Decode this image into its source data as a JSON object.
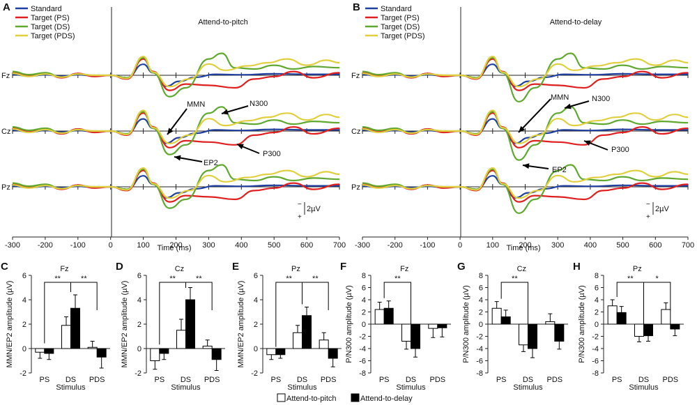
{
  "colors": {
    "Standard": "#2040a0",
    "Target (PS)": "#e02020",
    "Target (DS)": "#60a830",
    "Target (PDS)": "#e0d040"
  },
  "waveform_panels": [
    {
      "letter": "A",
      "title": "Attend-to-pitch",
      "legend": [
        "Standard",
        "Target (PS)",
        "Target (DS)",
        "Target (PDS)"
      ],
      "channels": [
        "Fz",
        "Cz",
        "Pz"
      ],
      "xlabel": "Time (ms)",
      "xticks": [
        -300,
        -200,
        -100,
        0,
        100,
        200,
        300,
        400,
        500,
        600,
        700
      ],
      "scale_label": "2µV",
      "scale_minus": "−",
      "scale_plus": "+",
      "annotations": [
        "MMN",
        "N300",
        "EP2",
        "P300"
      ]
    },
    {
      "letter": "B",
      "title": "Attend-to-delay",
      "legend": [
        "Standard",
        "Target (PS)",
        "Target (DS)",
        "Target (PDS)"
      ],
      "channels": [
        "Fz",
        "Cz",
        "Pz"
      ],
      "xlabel": "Time (ms)",
      "xticks": [
        -300,
        -200,
        -100,
        0,
        100,
        200,
        300,
        400,
        500,
        600,
        700
      ],
      "scale_label": "2µV",
      "scale_minus": "−",
      "scale_plus": "+",
      "annotations": [
        "MMN",
        "N300",
        "P300",
        "EP2"
      ]
    }
  ],
  "chart_data": [
    {
      "type": "bar",
      "letter": "C",
      "title": "Fz",
      "ylabel": "MMN/EP2 amplitude (µV)",
      "xlabel": "Stimulus",
      "categories": [
        "PS",
        "DS",
        "PDS"
      ],
      "ylim": [
        -2,
        6
      ],
      "yticks": [
        -2,
        0,
        2,
        4,
        6
      ],
      "series": [
        {
          "name": "Attend-to-pitch",
          "values": [
            -0.3,
            1.9,
            0.1
          ],
          "errors": [
            0.5,
            0.7,
            0.5
          ]
        },
        {
          "name": "Attend-to-delay",
          "values": [
            -0.4,
            3.3,
            -0.7
          ],
          "errors": [
            0.5,
            1.1,
            0.9
          ]
        }
      ],
      "significance": [
        {
          "from": "PS",
          "to": "DS",
          "label": "**"
        },
        {
          "from": "DS",
          "to": "PDS",
          "label": "**"
        }
      ]
    },
    {
      "type": "bar",
      "letter": "D",
      "title": "Cz",
      "ylabel": "MMN/EP2 amplitude (µV)",
      "xlabel": "Stimulus",
      "categories": [
        "PS",
        "DS",
        "PDS"
      ],
      "ylim": [
        -2,
        6
      ],
      "yticks": [
        -2,
        0,
        2,
        4,
        6
      ],
      "series": [
        {
          "name": "Attend-to-pitch",
          "values": [
            -1.0,
            1.5,
            0.2
          ],
          "errors": [
            0.7,
            0.9,
            0.5
          ]
        },
        {
          "name": "Attend-to-delay",
          "values": [
            -0.4,
            4.0,
            -0.9
          ],
          "errors": [
            0.5,
            1.0,
            0.9
          ]
        }
      ],
      "significance": [
        {
          "from": "PS",
          "to": "DS",
          "label": "**"
        },
        {
          "from": "DS",
          "to": "PDS",
          "label": "**"
        }
      ]
    },
    {
      "type": "bar",
      "letter": "E",
      "title": "Pz",
      "ylabel": "MMN/EP2 amplitude (µV)",
      "xlabel": "Stimulus",
      "categories": [
        "PS",
        "DS",
        "PDS"
      ],
      "ylim": [
        -2,
        6
      ],
      "yticks": [
        -2,
        0,
        2,
        4,
        6
      ],
      "series": [
        {
          "name": "Attend-to-pitch",
          "values": [
            -0.5,
            1.3,
            0.7
          ],
          "errors": [
            0.4,
            0.6,
            0.6
          ]
        },
        {
          "name": "Attend-to-delay",
          "values": [
            -0.5,
            2.7,
            -0.8
          ],
          "errors": [
            0.3,
            0.7,
            0.7
          ]
        }
      ],
      "significance": [
        {
          "from": "PS",
          "to": "DS",
          "label": "**"
        },
        {
          "from": "DS",
          "to": "PDS",
          "label": "**"
        }
      ]
    },
    {
      "type": "bar",
      "letter": "F",
      "title": "Fz",
      "ylabel": "P/N300 amplitude (µV)",
      "xlabel": "Stimulus",
      "categories": [
        "PS",
        "DS",
        "PDS"
      ],
      "ylim": [
        -8,
        8
      ],
      "yticks": [
        -8,
        -6,
        -4,
        -2,
        0,
        2,
        4,
        6,
        8
      ],
      "series": [
        {
          "name": "Attend-to-pitch",
          "values": [
            2.4,
            -2.8,
            -0.7
          ],
          "errors": [
            1.2,
            1.3,
            1.5
          ]
        },
        {
          "name": "Attend-to-delay",
          "values": [
            2.6,
            -4.0,
            -0.6
          ],
          "errors": [
            1.2,
            1.4,
            1.5
          ]
        }
      ],
      "significance": [
        {
          "from": "PS",
          "to": "DS",
          "label": "**"
        }
      ]
    },
    {
      "type": "bar",
      "letter": "G",
      "title": "Cz",
      "ylabel": "P/N300 amplitude (µV)",
      "xlabel": "Stimulus",
      "categories": [
        "PS",
        "DS",
        "PDS"
      ],
      "ylim": [
        -8,
        8
      ],
      "yticks": [
        -8,
        -6,
        -4,
        -2,
        0,
        2,
        4,
        6,
        8
      ],
      "series": [
        {
          "name": "Attend-to-pitch",
          "values": [
            2.6,
            -3.4,
            0.4
          ],
          "errors": [
            1.1,
            1.1,
            1.3
          ]
        },
        {
          "name": "Attend-to-delay",
          "values": [
            1.2,
            -4.0,
            -2.8
          ],
          "errors": [
            1.1,
            1.5,
            1.3
          ]
        }
      ],
      "significance": [
        {
          "from": "PS",
          "to": "DS",
          "label": "**"
        }
      ]
    },
    {
      "type": "bar",
      "letter": "H",
      "title": "Pz",
      "ylabel": "P/N300 amplitude (µV)",
      "xlabel": "Stimulus",
      "categories": [
        "PS",
        "DS",
        "PDS"
      ],
      "ylim": [
        -8,
        8
      ],
      "yticks": [
        -8,
        -6,
        -4,
        -2,
        0,
        2,
        4,
        6,
        8
      ],
      "series": [
        {
          "name": "Attend-to-pitch",
          "values": [
            3.0,
            -2.0,
            2.4
          ],
          "errors": [
            1.0,
            0.9,
            1.1
          ]
        },
        {
          "name": "Attend-to-delay",
          "values": [
            1.9,
            -1.9,
            -0.8
          ],
          "errors": [
            1.0,
            0.9,
            1.1
          ]
        }
      ],
      "significance": [
        {
          "from": "PS",
          "to": "DS",
          "label": "**"
        },
        {
          "from": "DS",
          "to": "PDS",
          "label": "*"
        }
      ]
    }
  ],
  "bottom_legend": [
    {
      "name": "Attend-to-pitch",
      "fill": "#ffffff"
    },
    {
      "name": "Attend-to-delay",
      "fill": "#000000"
    }
  ]
}
